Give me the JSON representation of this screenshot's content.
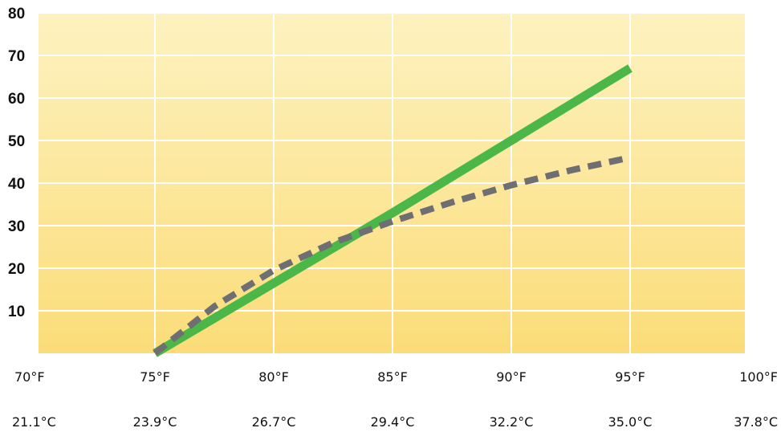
{
  "chart_data": {
    "type": "line",
    "title": "",
    "xlabel": "",
    "ylabel": "",
    "xlim": [
      70,
      100
    ],
    "ylim": [
      0,
      80
    ],
    "grid": true,
    "legend": "none",
    "x_ticks": [
      {
        "value": 70,
        "label": "70°F",
        "celsius": "21.1°C"
      },
      {
        "value": 75,
        "label": "75°F",
        "celsius": "23.9°C"
      },
      {
        "value": 80,
        "label": "80°F",
        "celsius": "26.7°C"
      },
      {
        "value": 85,
        "label": "85°F",
        "celsius": "29.4°C"
      },
      {
        "value": 90,
        "label": "90°F",
        "celsius": "32.2°C"
      },
      {
        "value": 95,
        "label": "95°F",
        "celsius": "35.0°C"
      },
      {
        "value": 100,
        "label": "100°F",
        "celsius": "37.8°C"
      }
    ],
    "y_ticks": [
      {
        "value": 10,
        "label": "10"
      },
      {
        "value": 20,
        "label": "20"
      },
      {
        "value": 30,
        "label": "30"
      },
      {
        "value": 40,
        "label": "40"
      },
      {
        "value": 50,
        "label": "50"
      },
      {
        "value": 60,
        "label": "60"
      },
      {
        "value": 70,
        "label": "70"
      },
      {
        "value": 80,
        "label": "80"
      }
    ],
    "series": [
      {
        "color": "#4bb749",
        "style": "solid",
        "x": [
          75,
          80,
          85,
          90,
          95
        ],
        "y": [
          0,
          16.5,
          33,
          50,
          67
        ]
      },
      {
        "color": "#6f6f73",
        "style": "dashed",
        "x": [
          75,
          77.5,
          80,
          82.5,
          85,
          87.5,
          90,
          92.5,
          95
        ],
        "y": [
          0,
          11,
          19.5,
          26,
          31,
          35.5,
          39.5,
          43,
          46
        ]
      }
    ],
    "background_gradient": [
      "#fdf2c0",
      "#fbdc78"
    ]
  }
}
